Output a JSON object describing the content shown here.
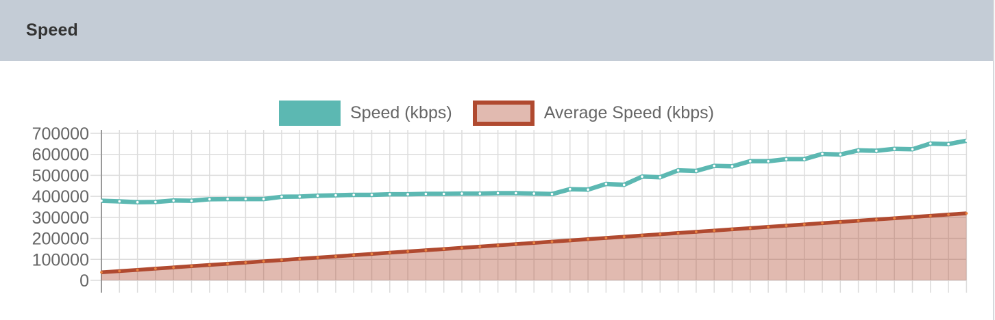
{
  "header": {
    "title": "Speed"
  },
  "legend": {
    "items": [
      {
        "label": "Speed (kbps)",
        "swatch": "teal-solid"
      },
      {
        "label": "Average Speed (kbps)",
        "swatch": "tan-fill-red-border"
      }
    ]
  },
  "colors": {
    "header_bg": "#c4ccd6",
    "speed_line": "#5cb8b2",
    "speed_marker": "#ffffff",
    "avg_line": "#b04a30",
    "avg_marker": "#e8823f",
    "avg_fill": "rgba(176,74,48,0.38)",
    "grid": "#dcdcdc",
    "axis": "#999999",
    "tick_text": "#666666"
  },
  "chart_data": {
    "type": "line",
    "title": "Speed",
    "xlabel": "",
    "ylabel": "",
    "ylim": [
      0,
      700000
    ],
    "ytick_step": 100000,
    "yticks": [
      0,
      100000,
      200000,
      300000,
      400000,
      500000,
      600000,
      700000
    ],
    "x_count": 49,
    "x_labels_visible": false,
    "grid": true,
    "legend_position": "top-center",
    "series": [
      {
        "name": "Speed (kbps)",
        "style": "line-with-markers",
        "values": [
          379000,
          376000,
          372000,
          373000,
          380000,
          379000,
          386000,
          387000,
          387000,
          387000,
          398000,
          399000,
          403000,
          405000,
          407000,
          407000,
          410000,
          410000,
          412000,
          412000,
          413000,
          413000,
          415000,
          415000,
          413000,
          411000,
          434000,
          432000,
          459000,
          455000,
          494000,
          491000,
          524000,
          521000,
          545000,
          543000,
          567000,
          567000,
          577000,
          577000,
          602000,
          599000,
          619000,
          617000,
          626000,
          624000,
          651000,
          649000,
          665000
        ]
      },
      {
        "name": "Average Speed (kbps)",
        "style": "area-line-with-markers",
        "values": [
          38000,
          43900,
          49700,
          55600,
          61400,
          67300,
          73100,
          79000,
          84800,
          90700,
          96500,
          102400,
          108300,
          114100,
          120000,
          125800,
          131700,
          137500,
          143400,
          149200,
          155100,
          160900,
          166800,
          172600,
          178500,
          184400,
          190200,
          196100,
          201900,
          207800,
          213600,
          219500,
          225300,
          231200,
          237000,
          242900,
          248800,
          254600,
          260500,
          266300,
          272200,
          278000,
          283900,
          289700,
          295600,
          301400,
          307300,
          313100,
          319000
        ]
      }
    ]
  }
}
